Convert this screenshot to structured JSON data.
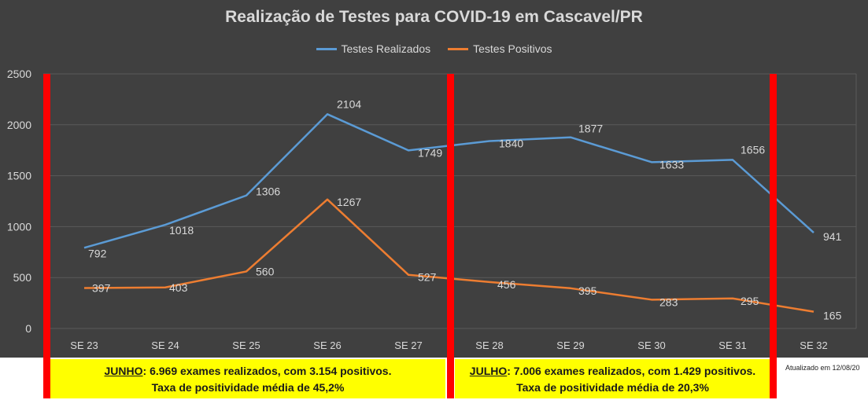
{
  "chart_data": {
    "type": "line",
    "title": "Realização de Testes para COVID-19 em Cascavel/PR",
    "categories": [
      "SE 23",
      "SE 24",
      "SE 25",
      "SE 26",
      "SE 27",
      "SE 28",
      "SE 29",
      "SE 30",
      "SE 31",
      "SE 32"
    ],
    "series": [
      {
        "name": "Testes Realizados",
        "color": "#5b9bd5",
        "values": [
          792,
          1018,
          1306,
          2104,
          1749,
          1840,
          1877,
          1633,
          1656,
          941
        ]
      },
      {
        "name": "Testes Positivos",
        "color": "#ed7d31",
        "values": [
          397,
          403,
          560,
          1267,
          527,
          456,
          395,
          283,
          295,
          165
        ]
      }
    ],
    "ylim": [
      0,
      2500
    ],
    "yticks": [
      "0",
      "500",
      "1000",
      "1500",
      "2000",
      "2500"
    ],
    "grid": true,
    "legend_position": "top-center",
    "background": "#404040",
    "text_color": "#d9d9d9",
    "separator_color": "#ff0000"
  },
  "annotations": {
    "june": {
      "month": "JUNHO",
      "line1_rest": ": 6.969 exames realizados, com 3.154 positivos.",
      "line2": "Taxa de positividade média de 45,2%"
    },
    "july": {
      "month": "JULHO",
      "line1_rest": ": 7.006 exames realizados, com 1.429 positivos.",
      "line2": "Taxa de positividade média de  20,3%"
    },
    "updated": "Atualizado em 12/08/20"
  }
}
